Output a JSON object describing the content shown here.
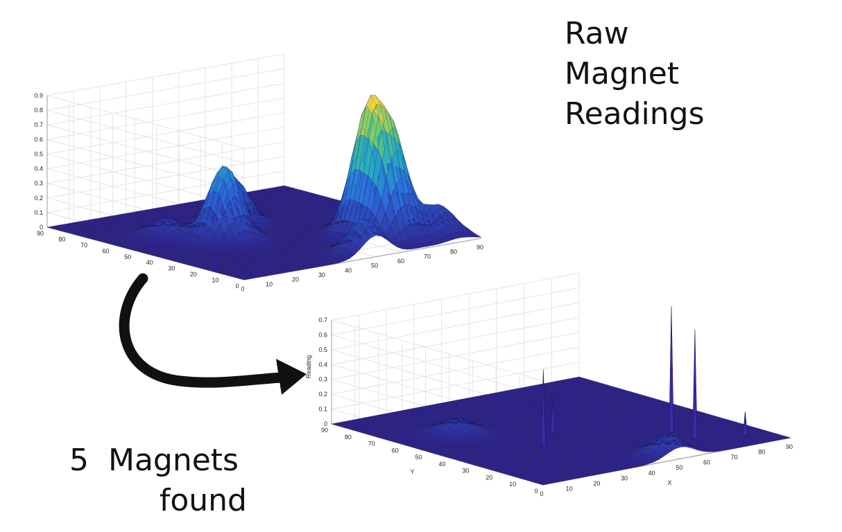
{
  "headline": {
    "lines": [
      "Raw",
      "Magnet",
      "Readings"
    ]
  },
  "caption": {
    "count": "5",
    "word1": "Magnets",
    "word2": "found"
  },
  "colors": {
    "base": "#2e2390",
    "peak": "#f4d640",
    "arrow": "#111111",
    "spike": "#3b2aa3"
  },
  "chart_data": [
    {
      "type": "surface",
      "title": "",
      "xlabel": "",
      "ylabel": "",
      "zlabel": "",
      "xlim": [
        0,
        90
      ],
      "ylim": [
        0,
        90
      ],
      "zlim": [
        0,
        0.9
      ],
      "x_ticks": [
        "0",
        "10",
        "20",
        "30",
        "40",
        "50",
        "60",
        "70",
        "80",
        "90"
      ],
      "y_ticks": [
        "0",
        "10",
        "20",
        "30",
        "40",
        "50",
        "60",
        "70",
        "80",
        "90"
      ],
      "z_ticks": [
        "0",
        "0.1",
        "0.2",
        "0.3",
        "0.4",
        "0.5",
        "0.6",
        "0.7",
        "0.8",
        "0.9"
      ],
      "grid": true,
      "peaks": [
        {
          "x": 30,
          "y": 45,
          "z": 0.51
        },
        {
          "x": 45,
          "y": 60,
          "z": 0.33
        },
        {
          "x": 20,
          "y": 60,
          "z": 0.12
        },
        {
          "x": 68,
          "y": 25,
          "z": 0.83
        },
        {
          "x": 68,
          "y": 15,
          "z": 0.71
        },
        {
          "x": 50,
          "y": 5,
          "z": 0.24
        },
        {
          "x": 82,
          "y": 10,
          "z": 0.21
        }
      ]
    },
    {
      "type": "surface",
      "title": "",
      "xlabel": "X",
      "ylabel": "Y",
      "zlabel": "Reading",
      "xlim": [
        0,
        90
      ],
      "ylim": [
        0,
        90
      ],
      "zlim": [
        0,
        0.7
      ],
      "x_ticks": [
        "0",
        "10",
        "20",
        "30",
        "40",
        "50",
        "60",
        "70",
        "80",
        "90"
      ],
      "y_ticks": [
        "0",
        "10",
        "20",
        "30",
        "40",
        "50",
        "60",
        "70",
        "80",
        "90"
      ],
      "z_ticks": [
        "0",
        "0.1",
        "0.2",
        "0.3",
        "0.4",
        "0.5",
        "0.6",
        "0.7"
      ],
      "grid": true,
      "bumps": [
        {
          "x": 20,
          "y": 60,
          "z": 0.1
        },
        {
          "x": 50,
          "y": 5,
          "z": 0.13
        }
      ],
      "spikes": [
        {
          "x": 30,
          "y": 35,
          "z": 0.51
        },
        {
          "x": 42,
          "y": 45,
          "z": 0.23
        },
        {
          "x": 68,
          "y": 25,
          "z": 0.85
        },
        {
          "x": 68,
          "y": 15,
          "z": 0.74
        },
        {
          "x": 82,
          "y": 10,
          "z": 0.16
        }
      ]
    }
  ]
}
